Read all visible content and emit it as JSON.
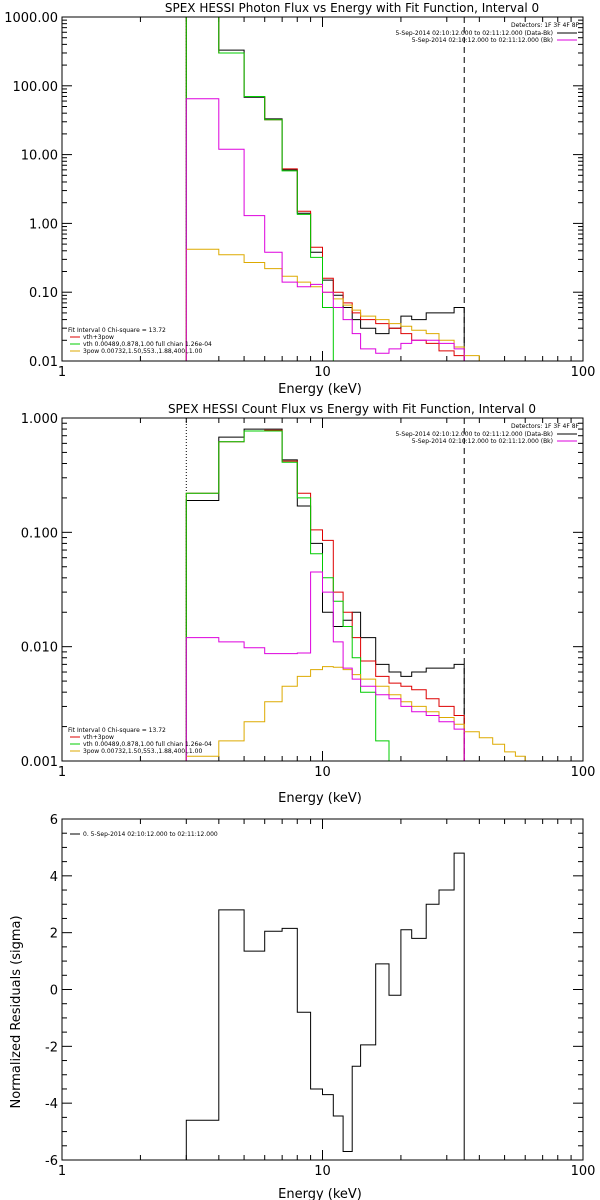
{
  "colors": {
    "data": "#000000",
    "vth": "#00cc00",
    "sum": "#dd0000",
    "bpow": "#ddaa00",
    "bkg": "#dd00dd"
  },
  "chart_data": [
    {
      "type": "line",
      "title": "SPEX HESSI Photon Flux vs Energy with Fit Function, Interval 0",
      "xlabel": "Energy (keV)",
      "ylabel": "",
      "xscale": "log",
      "yscale": "log",
      "xlim": [
        1,
        100
      ],
      "ylim": [
        0.01,
        1000
      ],
      "xticks": [
        {
          "v": 1,
          "label": "1"
        },
        {
          "v": 10,
          "label": "10"
        },
        {
          "v": 100,
          "label": "100"
        }
      ],
      "yticks": [
        {
          "v": 1000,
          "label": "1000.00"
        },
        {
          "v": 100,
          "label": "100.00"
        },
        {
          "v": 10,
          "label": "10.00"
        },
        {
          "v": 1,
          "label": "1.00"
        },
        {
          "v": 0.1,
          "label": "0.10"
        },
        {
          "v": 0.01,
          "label": "0.01"
        }
      ],
      "vlines": [
        {
          "x": 3,
          "style": "dotted"
        },
        {
          "x": 35,
          "style": "dashed"
        }
      ],
      "detectors": "Detectors: 1F 3F 4F 8F",
      "info_lines": [
        {
          "text": "5-Sep-2014 02:10:12.000 to 02:11:12.000 (Data-Bk)",
          "color": "#000000"
        },
        {
          "text": "5-Sep-2014 02:10:12.000 to 02:11:12.000 (Bk)",
          "color": "#dd00dd"
        }
      ],
      "legend_lines": [
        {
          "text": "Fit Interval 0   Chi-square = 13.72",
          "color": ""
        },
        {
          "text": "vth+3pow",
          "color": "#dd0000"
        },
        {
          "text": "vth 0.00489,0.878,1.00   full chian 1.26e-04",
          "color": "#00cc00"
        },
        {
          "text": "3pow 0.00732,1.50,553.,1.88,400.,1.00",
          "color": "#ddaa00"
        }
      ],
      "edges": [
        3,
        4,
        5,
        6,
        7,
        8,
        9,
        10,
        11,
        12,
        13,
        14,
        16,
        18,
        20,
        22,
        25,
        28,
        32,
        35,
        40,
        45
      ],
      "series": [
        {
          "name": "",
          "key": "data",
          "color": "#000000",
          "values": [
            1000,
            330,
            68,
            33,
            6,
            1.4,
            0.38,
            0.15,
            0.09,
            0.06,
            0.04,
            0.03,
            0.025,
            0.03,
            0.045,
            0.04,
            0.05,
            0.05,
            0.06,
            null,
            null
          ]
        },
        {
          "name": "vth+3pow",
          "key": "sum",
          "color": "#dd0000",
          "values": [
            1000,
            300,
            70,
            32,
            6.2,
            1.5,
            0.45,
            0.16,
            0.1,
            0.07,
            0.05,
            0.04,
            0.035,
            0.03,
            0.025,
            0.02,
            0.018,
            0.014,
            0.012,
            0.01,
            null
          ]
        },
        {
          "name": "vth",
          "key": "vth",
          "color": "#00cc00",
          "values": [
            1000,
            300,
            70,
            32,
            5.8,
            1.35,
            0.32,
            0.06,
            0.01,
            null,
            null,
            null,
            null,
            null,
            null,
            null,
            null,
            null,
            null,
            null,
            null
          ]
        },
        {
          "name": "3pow",
          "key": "bpow",
          "color": "#ddaa00",
          "values": [
            0.42,
            0.35,
            0.27,
            0.22,
            0.17,
            0.14,
            0.12,
            0.1,
            0.08,
            0.065,
            0.055,
            0.045,
            0.04,
            0.035,
            0.032,
            0.028,
            0.025,
            0.02,
            0.016,
            0.012,
            0.01
          ]
        },
        {
          "name": "",
          "key": "bkg",
          "color": "#dd00dd",
          "values": [
            65,
            12,
            1.3,
            0.38,
            0.14,
            0.12,
            0.13,
            0.1,
            0.06,
            0.04,
            0.025,
            0.015,
            0.013,
            0.015,
            0.018,
            0.02,
            0.02,
            0.018,
            0.015,
            null,
            null
          ]
        }
      ]
    },
    {
      "type": "line",
      "title": "SPEX HESSI Count Flux vs Energy with Fit Function, Interval 0",
      "xlabel": "Energy (keV)",
      "ylabel": "",
      "xscale": "log",
      "yscale": "log",
      "xlim": [
        1,
        100
      ],
      "ylim": [
        0.001,
        1
      ],
      "xticks": [
        {
          "v": 1,
          "label": "1"
        },
        {
          "v": 10,
          "label": "10"
        },
        {
          "v": 100,
          "label": "100"
        }
      ],
      "yticks": [
        {
          "v": 1,
          "label": "1.000"
        },
        {
          "v": 0.1,
          "label": "0.100"
        },
        {
          "v": 0.01,
          "label": "0.010"
        },
        {
          "v": 0.001,
          "label": "0.001"
        }
      ],
      "vlines": [
        {
          "x": 3,
          "style": "dotted"
        },
        {
          "x": 35,
          "style": "dashed"
        }
      ],
      "detectors": "Detectors: 1F 3F 4F 8F",
      "info_lines": [
        {
          "text": "5-Sep-2014 02:10:12.000 to 02:11:12.000 (Data-Bk)",
          "color": "#000000"
        },
        {
          "text": "5-Sep-2014 02:10:12.000 to 02:11:12.000 (Bk)",
          "color": "#dd00dd"
        }
      ],
      "legend_lines": [
        {
          "text": "Fit Interval 0   Chi-square = 13.72",
          "color": ""
        },
        {
          "text": "vth+3pow",
          "color": "#dd0000"
        },
        {
          "text": "vth 0.00489,0.878,1.00   full chian 1.26e-04",
          "color": "#00cc00"
        },
        {
          "text": "3pow 0.00732,1.50,553.,1.88,400.,1.00",
          "color": "#ddaa00"
        }
      ],
      "edges": [
        3,
        4,
        5,
        6,
        7,
        8,
        9,
        10,
        11,
        12,
        13,
        14,
        16,
        18,
        20,
        22,
        25,
        28,
        32,
        35,
        40,
        45,
        50,
        55,
        60
      ],
      "series": [
        {
          "name": "",
          "key": "data",
          "color": "#000000",
          "values": [
            0.19,
            0.68,
            0.8,
            0.8,
            0.43,
            0.17,
            0.08,
            0.02,
            0.015,
            0.017,
            0.02,
            0.012,
            0.007,
            0.006,
            0.0055,
            0.006,
            0.0065,
            0.0065,
            0.007,
            null,
            null,
            null,
            null,
            null
          ]
        },
        {
          "name": "vth+3pow",
          "key": "sum",
          "color": "#dd0000",
          "values": [
            0.22,
            0.62,
            0.77,
            0.78,
            0.42,
            0.22,
            0.105,
            0.085,
            0.03,
            0.02,
            0.012,
            0.0075,
            0.0055,
            0.0048,
            0.0045,
            0.0042,
            0.0035,
            0.003,
            0.0025,
            null,
            null,
            null,
            null,
            null
          ]
        },
        {
          "name": "vth",
          "key": "vth",
          "color": "#00cc00",
          "values": [
            0.22,
            0.62,
            0.77,
            0.77,
            0.41,
            0.2,
            0.065,
            0.04,
            0.025,
            0.015,
            0.008,
            0.004,
            0.0015,
            null,
            null,
            null,
            null,
            null,
            null,
            null,
            null,
            null,
            null,
            null
          ]
        },
        {
          "name": "3pow",
          "key": "bpow",
          "color": "#ddaa00",
          "values": [
            0.0011,
            0.0015,
            0.0022,
            0.0033,
            0.0045,
            0.0055,
            0.0063,
            0.0067,
            0.0066,
            0.0063,
            0.0057,
            0.0052,
            0.0045,
            0.0038,
            0.0033,
            0.003,
            0.0027,
            0.0024,
            0.0021,
            0.0018,
            0.0016,
            0.0014,
            0.0012,
            0.0011
          ]
        },
        {
          "name": "",
          "key": "bkg",
          "color": "#dd00dd",
          "values": [
            0.012,
            0.011,
            0.0098,
            0.0087,
            0.0087,
            0.0088,
            0.045,
            0.03,
            0.011,
            0.0065,
            0.0052,
            0.0045,
            0.0038,
            0.0035,
            0.003,
            0.0027,
            0.0025,
            0.0022,
            0.0019,
            null,
            null,
            null,
            null,
            null
          ]
        }
      ]
    },
    {
      "type": "line",
      "title": "",
      "xlabel": "Energy (keV)",
      "ylabel": "Normalized Residuals (sigma)",
      "xscale": "log",
      "yscale": "linear",
      "xlim": [
        1,
        100
      ],
      "ylim": [
        -6,
        6
      ],
      "xticks": [
        {
          "v": 1,
          "label": "1"
        },
        {
          "v": 10,
          "label": "10"
        },
        {
          "v": 100,
          "label": "100"
        }
      ],
      "yticks": [
        {
          "v": 6,
          "label": "6"
        },
        {
          "v": 4,
          "label": "4"
        },
        {
          "v": 2,
          "label": "2"
        },
        {
          "v": 0,
          "label": "0"
        },
        {
          "v": -2,
          "label": "-2"
        },
        {
          "v": -4,
          "label": "-4"
        },
        {
          "v": -6,
          "label": "-6"
        }
      ],
      "vlines": [],
      "detectors": "",
      "info_lines": [],
      "legend_lines": [
        {
          "text": "0.  5-Sep-2014 02:10:12.000 to 02:11:12.000",
          "color": "#000000"
        }
      ],
      "edges": [
        3,
        4,
        5,
        6,
        7,
        8,
        9,
        10,
        11,
        12,
        13,
        14,
        16,
        18,
        20,
        22,
        25,
        28,
        32,
        35
      ],
      "series": [
        {
          "name": "",
          "key": "data",
          "color": "#000000",
          "values": [
            -4.6,
            2.8,
            1.35,
            2.05,
            2.15,
            -0.8,
            -3.5,
            -3.7,
            -4.45,
            -5.7,
            -2.7,
            -1.95,
            0.9,
            -0.2,
            2.1,
            1.8,
            3.0,
            3.5,
            4.8
          ]
        }
      ]
    }
  ]
}
